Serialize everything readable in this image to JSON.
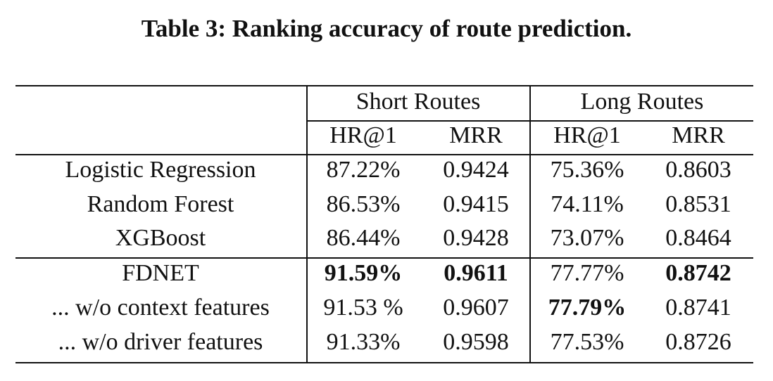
{
  "table": {
    "title": "Table 3: Ranking accuracy of route prediction.",
    "groups": [
      "Short Routes",
      "Long Routes"
    ],
    "columns": [
      "HR@1",
      "MRR",
      "HR@1",
      "MRR"
    ],
    "rows": [
      {
        "label": "Logistic Regression",
        "values": [
          "87.22%",
          "0.9424",
          "75.36%",
          "0.8603"
        ],
        "bold": [
          false,
          false,
          false,
          false
        ]
      },
      {
        "label": "Random Forest",
        "values": [
          "86.53%",
          "0.9415",
          "74.11%",
          "0.8531"
        ],
        "bold": [
          false,
          false,
          false,
          false
        ]
      },
      {
        "label": "XGBoost",
        "values": [
          "86.44%",
          "0.9428",
          "73.07%",
          "0.8464"
        ],
        "bold": [
          false,
          false,
          false,
          false
        ]
      },
      {
        "label": "FDNET",
        "values": [
          "91.59%",
          "0.9611",
          "77.77%",
          "0.8742"
        ],
        "bold": [
          true,
          true,
          false,
          true
        ]
      },
      {
        "label": "... w/o context features",
        "values": [
          "91.53 %",
          "0.9607",
          "77.79%",
          "0.8741"
        ],
        "bold": [
          false,
          false,
          true,
          false
        ]
      },
      {
        "label": "... w/o driver features",
        "values": [
          "91.33%",
          "0.9598",
          "77.53%",
          "0.8726"
        ],
        "bold": [
          false,
          false,
          false,
          false
        ]
      }
    ]
  }
}
